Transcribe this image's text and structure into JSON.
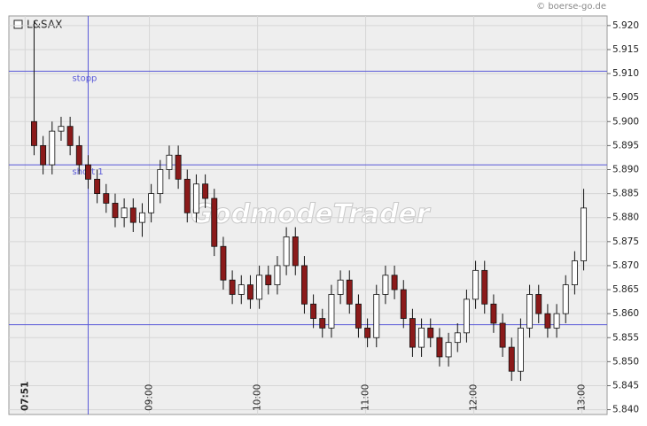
{
  "chart_data": {
    "type": "candlestick",
    "legend": "L&SAX",
    "source": "© boerse-go.de",
    "watermark": "GodmodeTrader",
    "up_color": "#ffffff",
    "down_color": "#8b1a1a",
    "line_color": "#5a5ad8",
    "grid": true,
    "x": [
      476,
      481,
      486,
      491,
      496,
      501,
      506,
      511,
      516,
      521,
      526,
      531,
      536,
      541,
      546,
      551,
      556,
      561,
      566,
      571,
      576,
      581,
      586,
      591,
      596,
      601,
      606,
      611,
      616,
      621,
      626,
      631,
      636,
      641,
      646,
      651,
      656,
      661,
      666,
      671,
      676,
      681,
      686,
      691,
      696,
      701,
      706,
      711,
      716,
      721,
      726,
      731,
      736,
      741,
      746,
      751,
      756,
      761,
      766,
      771,
      776,
      781
    ],
    "open": [
      5.9,
      5.895,
      5.891,
      5.898,
      5.899,
      5.895,
      5.891,
      5.888,
      5.885,
      5.883,
      5.88,
      5.882,
      5.879,
      5.881,
      5.885,
      5.89,
      5.893,
      5.888,
      5.881,
      5.887,
      5.884,
      5.874,
      5.867,
      5.864,
      5.866,
      5.863,
      5.868,
      5.866,
      5.87,
      5.876,
      5.87,
      5.862,
      5.859,
      5.857,
      5.864,
      5.867,
      5.862,
      5.857,
      5.855,
      5.864,
      5.868,
      5.865,
      5.859,
      5.853,
      5.857,
      5.855,
      5.851,
      5.854,
      5.856,
      5.863,
      5.869,
      5.862,
      5.858,
      5.853,
      5.848,
      5.857,
      5.864,
      5.86,
      5.857,
      5.86,
      5.866,
      5.871
    ],
    "high": [
      5.921,
      5.897,
      5.9,
      5.901,
      5.901,
      5.897,
      5.893,
      5.89,
      5.887,
      5.885,
      5.884,
      5.884,
      5.883,
      5.887,
      5.892,
      5.895,
      5.895,
      5.89,
      5.889,
      5.889,
      5.886,
      5.876,
      5.869,
      5.868,
      5.868,
      5.87,
      5.87,
      5.872,
      5.878,
      5.878,
      5.872,
      5.864,
      5.861,
      5.866,
      5.869,
      5.869,
      5.864,
      5.859,
      5.866,
      5.87,
      5.87,
      5.867,
      5.861,
      5.859,
      5.859,
      5.857,
      5.856,
      5.858,
      5.865,
      5.871,
      5.871,
      5.864,
      5.86,
      5.855,
      5.859,
      5.866,
      5.866,
      5.862,
      5.862,
      5.868,
      5.873,
      5.886
    ],
    "low": [
      5.893,
      5.889,
      5.889,
      5.896,
      5.893,
      5.889,
      5.886,
      5.883,
      5.881,
      5.878,
      5.878,
      5.877,
      5.876,
      5.879,
      5.883,
      5.888,
      5.886,
      5.879,
      5.879,
      5.882,
      5.872,
      5.865,
      5.862,
      5.862,
      5.861,
      5.861,
      5.864,
      5.864,
      5.868,
      5.868,
      5.86,
      5.857,
      5.855,
      5.855,
      5.862,
      5.86,
      5.855,
      5.853,
      5.853,
      5.862,
      5.863,
      5.857,
      5.851,
      5.851,
      5.853,
      5.849,
      5.849,
      5.852,
      5.854,
      5.861,
      5.86,
      5.856,
      5.851,
      5.846,
      5.846,
      5.855,
      5.858,
      5.855,
      5.855,
      5.858,
      5.864,
      5.869
    ],
    "close": [
      5.895,
      5.891,
      5.898,
      5.899,
      5.895,
      5.891,
      5.888,
      5.885,
      5.883,
      5.88,
      5.882,
      5.879,
      5.881,
      5.885,
      5.89,
      5.893,
      5.888,
      5.881,
      5.887,
      5.884,
      5.874,
      5.867,
      5.864,
      5.866,
      5.863,
      5.868,
      5.866,
      5.87,
      5.876,
      5.87,
      5.862,
      5.859,
      5.857,
      5.864,
      5.867,
      5.862,
      5.857,
      5.855,
      5.864,
      5.868,
      5.865,
      5.859,
      5.853,
      5.857,
      5.855,
      5.851,
      5.854,
      5.856,
      5.863,
      5.869,
      5.862,
      5.858,
      5.853,
      5.848,
      5.857,
      5.864,
      5.86,
      5.857,
      5.86,
      5.866,
      5.871,
      5.882
    ],
    "xlim": [
      462,
      794
    ],
    "xticks": [
      {
        "value": 471,
        "label": "07:51"
      },
      {
        "value": 540,
        "label": "09:00"
      },
      {
        "value": 600,
        "label": "10:00"
      },
      {
        "value": 660,
        "label": "11:00"
      },
      {
        "value": 720,
        "label": "12:00"
      },
      {
        "value": 780,
        "label": "13:00"
      }
    ],
    "ylim": [
      5.839,
      5.922
    ],
    "yticks": [
      {
        "value": 5.84,
        "label": "5.840"
      },
      5.845,
      {
        "value": 5.85,
        "label": "5.850"
      },
      5.855,
      {
        "value": 5.86,
        "label": "5.860"
      },
      5.865,
      {
        "value": 5.87,
        "label": "5.870"
      },
      5.875,
      {
        "value": 5.88,
        "label": "5.880"
      },
      5.885,
      {
        "value": 5.89,
        "label": "5.890"
      },
      5.895,
      {
        "value": 5.9,
        "label": "5.900"
      },
      5.905,
      {
        "value": 5.91,
        "label": "5.910"
      },
      5.915,
      {
        "value": 5.92,
        "label": "5.920"
      }
    ],
    "hlines": [
      {
        "label": "stopp",
        "value": 5.9105
      },
      {
        "label": "short 1",
        "value": 5.891
      },
      {
        "value": 5.8577
      }
    ],
    "vline": 506
  }
}
